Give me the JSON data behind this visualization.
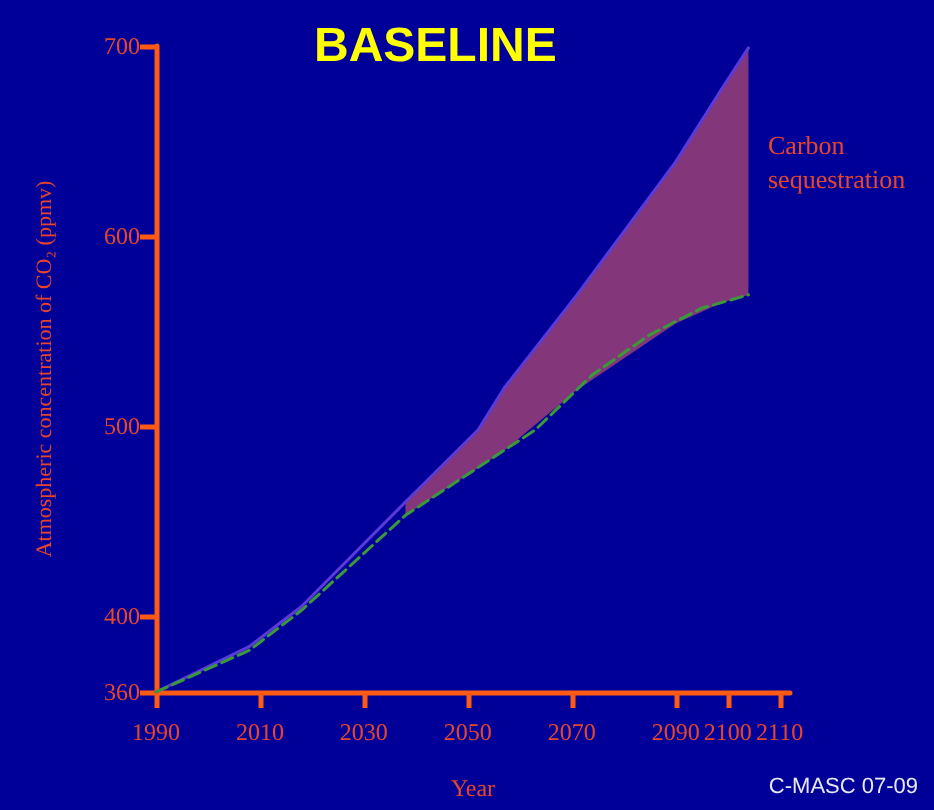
{
  "chart_data": {
    "type": "line",
    "title": "BASELINE",
    "xlabel": "Year",
    "ylabel": "Atmospheric concentration of CO₂ (ppmv)",
    "xlim": [
      1990,
      2112
    ],
    "xticks": [
      1990,
      2010,
      2030,
      2050,
      2070,
      2090,
      2100,
      2110
    ],
    "ylim": [
      360,
      700
    ],
    "yticks": [
      360,
      400,
      500,
      600,
      700
    ],
    "grid": false,
    "marker": "none",
    "series": [
      {
        "color": "#5a3ad8",
        "line_style": "solid",
        "x": [
          1990,
          2008,
          2018,
          2038,
          2052,
          2057,
          2071,
          2090,
          2099,
          2104
        ],
        "values": [
          360,
          384,
          405,
          460,
          498,
          520,
          569,
          639,
          678,
          699
        ],
        "lower": [
          null,
          null,
          null,
          453,
          478,
          487,
          519,
          554,
          565,
          569
        ],
        "upper": [
          null,
          null,
          null,
          460,
          498,
          520,
          569,
          639,
          678,
          699
        ]
      },
      {
        "color": "#3a9a3a",
        "line_style": "dashed",
        "x": [
          1990,
          2008,
          2018,
          2038,
          2063,
          2074,
          2085,
          2095,
          2104
        ],
        "values": [
          360,
          382,
          403,
          453,
          498,
          527,
          548,
          562,
          569
        ]
      }
    ],
    "annotations": [
      "Carbon sequestration",
      "C-MASC 07-09"
    ]
  }
}
